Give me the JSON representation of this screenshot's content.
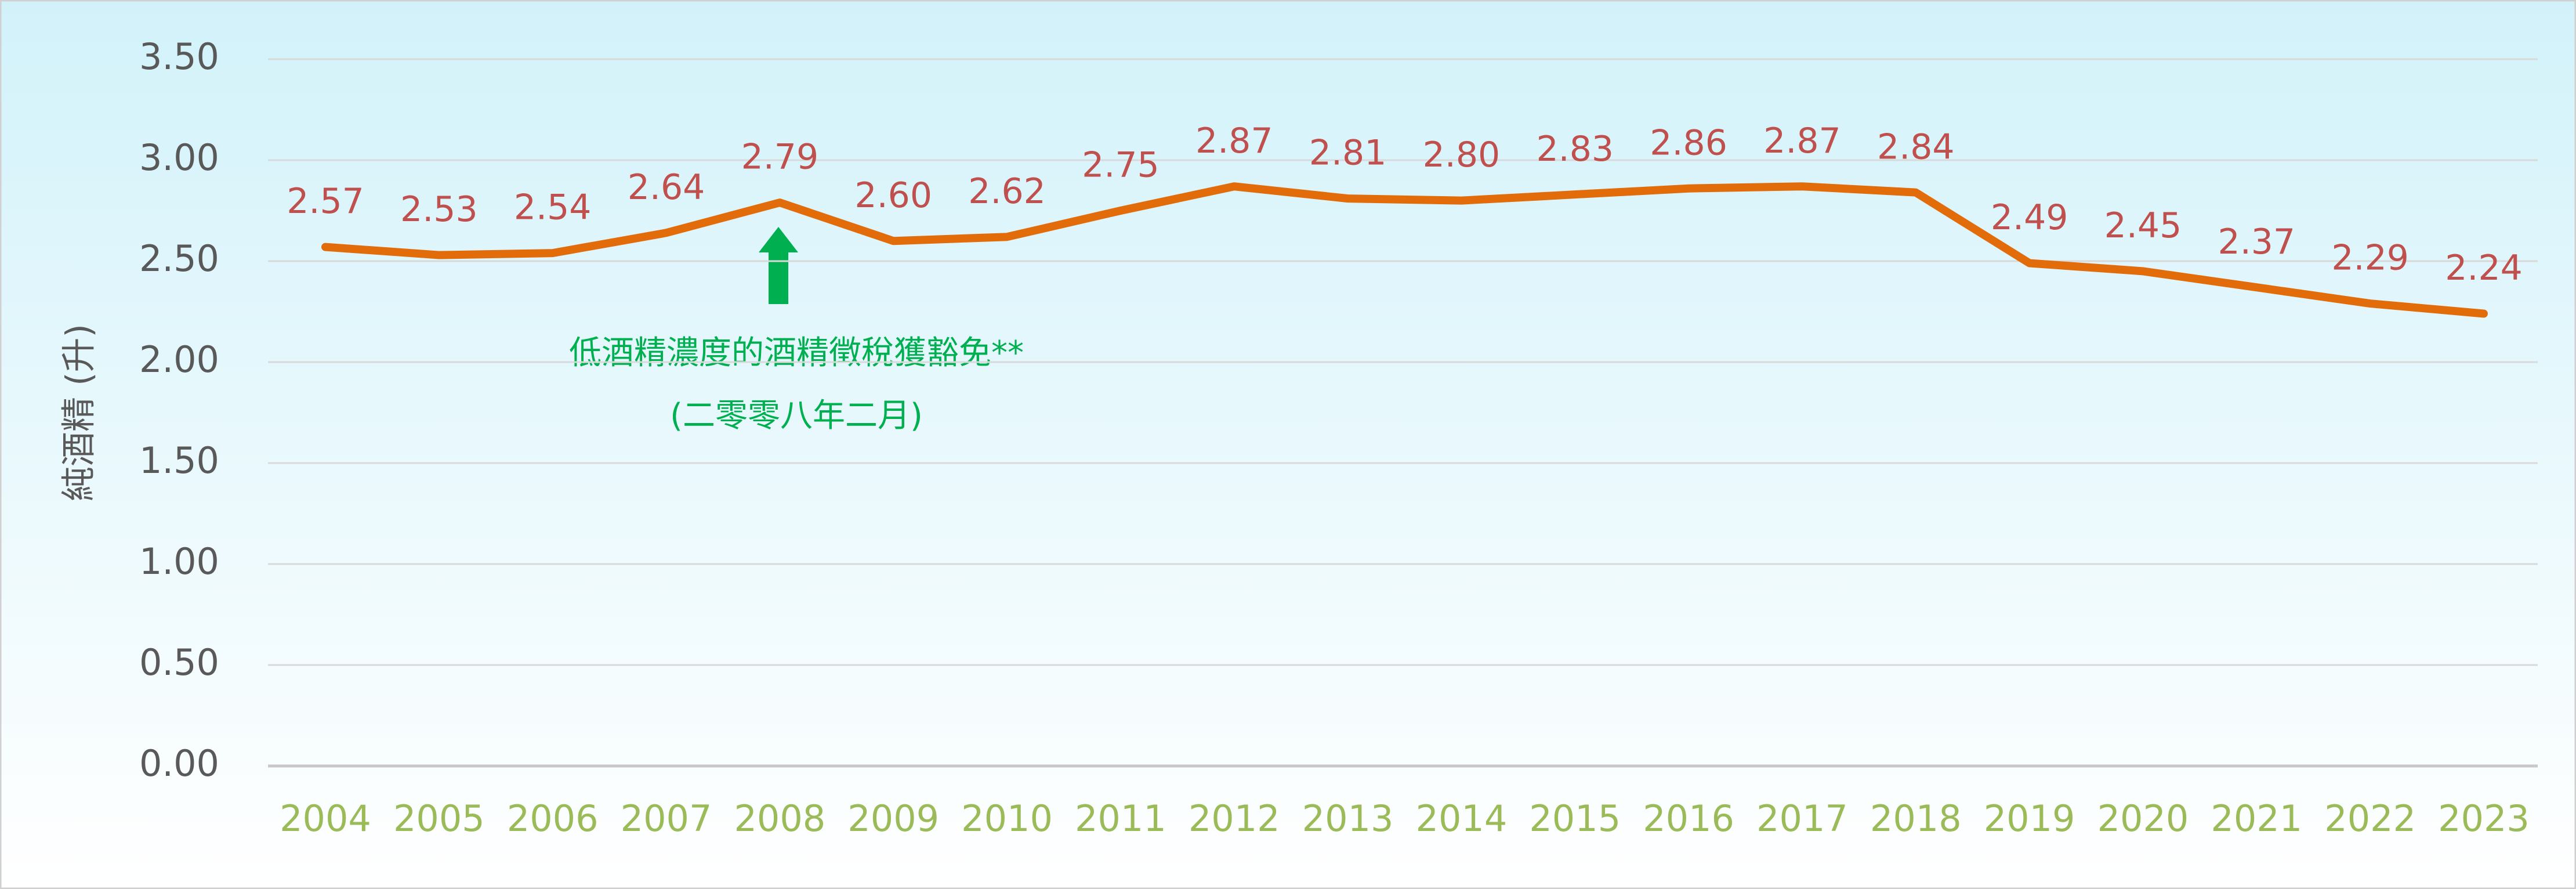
{
  "chart_data": {
    "type": "line",
    "y_label": "純酒精 (升)",
    "annotation": [
      "低酒精濃度的酒精徵稅獲豁免**",
      "(二零零八年二月)"
    ],
    "categories": [
      "2004",
      "2005",
      "2006",
      "2007",
      "2008",
      "2009",
      "2010",
      "2011",
      "2012",
      "2013",
      "2014",
      "2015",
      "2016",
      "2017",
      "2018",
      "2019",
      "2020",
      "2021",
      "2022",
      "2023"
    ],
    "series": [
      {
        "color": "#e36c0a",
        "values": [
          2.57,
          2.53,
          2.54,
          2.64,
          2.79,
          2.6,
          2.62,
          2.75,
          2.87,
          2.81,
          2.8,
          2.83,
          2.86,
          2.87,
          2.84,
          2.49,
          2.45,
          2.37,
          2.29,
          2.24
        ],
        "value_labels": [
          "2.57",
          "2.53",
          "2.54",
          "2.64",
          "2.79",
          "2.60",
          "2.62",
          "2.75",
          "2.87",
          "2.81",
          "2.80",
          "2.83",
          "2.86",
          "2.87",
          "2.84",
          "2.49",
          "2.45",
          "2.37",
          "2.29",
          "2.24"
        ]
      }
    ],
    "ylim": [
      0,
      3.5
    ],
    "yticks": [
      {
        "value": 0,
        "label": "0.00"
      },
      {
        "value": 0.5,
        "label": "0.50"
      },
      {
        "value": 1,
        "label": "1.00"
      },
      {
        "value": 1.5,
        "label": "1.50"
      },
      {
        "value": 2,
        "label": "2.00"
      },
      {
        "value": 2.5,
        "label": "2.50"
      },
      {
        "value": 3,
        "label": "3.00"
      },
      {
        "value": 3.5,
        "label": "3.50"
      }
    ],
    "grid": true
  }
}
